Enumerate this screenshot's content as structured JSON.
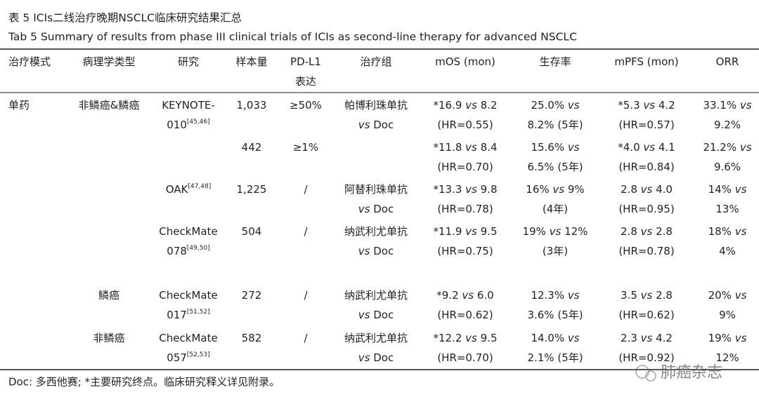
{
  "caption": {
    "zh": "表 5 ICIs二线治疗晚期NSCLC临床研究结果汇总",
    "en": "Tab 5 Summary of results from phase III clinical trials of ICIs as second-line therapy for advanced NSCLC"
  },
  "table": {
    "header": {
      "mode": [
        "治疗模式"
      ],
      "pathology": [
        "病理学类型"
      ],
      "study": [
        "研究"
      ],
      "n": [
        "样本量"
      ],
      "pdl1": [
        "PD-L1",
        "表达"
      ],
      "arm": [
        "治疗组"
      ],
      "mos": [
        "mOS (mon)"
      ],
      "survival": [
        "生存率"
      ],
      "mpfs": [
        "mPFS (mon)"
      ],
      "orr": [
        "ORR"
      ]
    },
    "rows": [
      {
        "mode": [
          "单药"
        ],
        "pathology": [
          "非鳞癌&鳞癌"
        ],
        "study": [
          "KEYNOTE-",
          "010"
        ],
        "ref": "[45,46]",
        "n": [
          "1,033"
        ],
        "pdl1": [
          "≥50%"
        ],
        "arm": [
          "帕博利珠单抗",
          "vs Doc"
        ],
        "mos": [
          "*16.9 vs 8.2",
          "(HR=0.55)"
        ],
        "survival": [
          "25.0% vs",
          "8.2% (5年)"
        ],
        "mpfs": [
          "*5.3 vs 4.2",
          "(HR=0.57)"
        ],
        "orr": [
          "33.1% vs",
          "9.2%"
        ]
      },
      {
        "n": [
          "442"
        ],
        "pdl1": [
          "≥1%"
        ],
        "mos": [
          "*11.8 vs 8.4",
          "(HR=0.70)"
        ],
        "survival": [
          "15.6% vs",
          "6.5% (5年)"
        ],
        "mpfs": [
          "*4.0 vs 4.1",
          "(HR=0.84)"
        ],
        "orr": [
          "21.2% vs",
          "9.6%"
        ]
      },
      {
        "study": [
          "OAK"
        ],
        "ref": "[47,48]",
        "n": [
          "1,225"
        ],
        "pdl1": [
          "/"
        ],
        "arm": [
          "阿替利珠单抗",
          "vs Doc"
        ],
        "mos": [
          "*13.3 vs 9.8",
          "(HR=0.78)"
        ],
        "survival": [
          "16% vs 9%",
          "(4年)"
        ],
        "mpfs": [
          "2.8 vs 4.0",
          "(HR=0.95)"
        ],
        "orr": [
          "14% vs",
          "13%"
        ]
      },
      {
        "study": [
          "CheckMate",
          "078"
        ],
        "ref": "[49,50]",
        "n": [
          "504"
        ],
        "pdl1": [
          "/"
        ],
        "arm": [
          "纳武利尤单抗",
          "vs Doc"
        ],
        "mos": [
          "*11.9 vs 9.5",
          "(HR=0.75)"
        ],
        "survival": [
          "19% vs 12%",
          "(3年)"
        ],
        "mpfs": [
          "2.8 vs 2.8",
          "(HR=0.78)"
        ],
        "orr": [
          "18% vs",
          "4%"
        ]
      },
      {
        "pathology": [
          "鳞癌"
        ],
        "study": [
          "CheckMate",
          "017"
        ],
        "ref": "[51,52]",
        "n": [
          "272"
        ],
        "pdl1": [
          "/"
        ],
        "arm": [
          "纳武利尤单抗",
          "vs Doc"
        ],
        "mos": [
          "*9.2 vs 6.0",
          "(HR=0.62)"
        ],
        "survival": [
          "12.3% vs",
          "3.6% (5年)"
        ],
        "mpfs": [
          "3.5 vs 2.8",
          "(HR=0.62)"
        ],
        "orr": [
          "20% vs",
          "9%"
        ]
      },
      {
        "pathology": [
          "非鳞癌"
        ],
        "study": [
          "CheckMate",
          "057"
        ],
        "ref": "[52,53]",
        "n": [
          "582"
        ],
        "pdl1": [
          "/"
        ],
        "arm": [
          "纳武利尤单抗",
          "vs Doc"
        ],
        "mos": [
          "*12.2 vs 9.5",
          "(HR=0.70)"
        ],
        "survival": [
          "14.0% vs",
          "2.1% (5年)"
        ],
        "mpfs": [
          "2.3 vs 4.2",
          "(HR=0.92)"
        ],
        "orr": [
          "19% vs",
          "12%"
        ]
      }
    ]
  },
  "footnote": "Doc: 多西他赛; *主要研究终点。临床研究释义详见附录。",
  "watermark": "肺癌杂志"
}
